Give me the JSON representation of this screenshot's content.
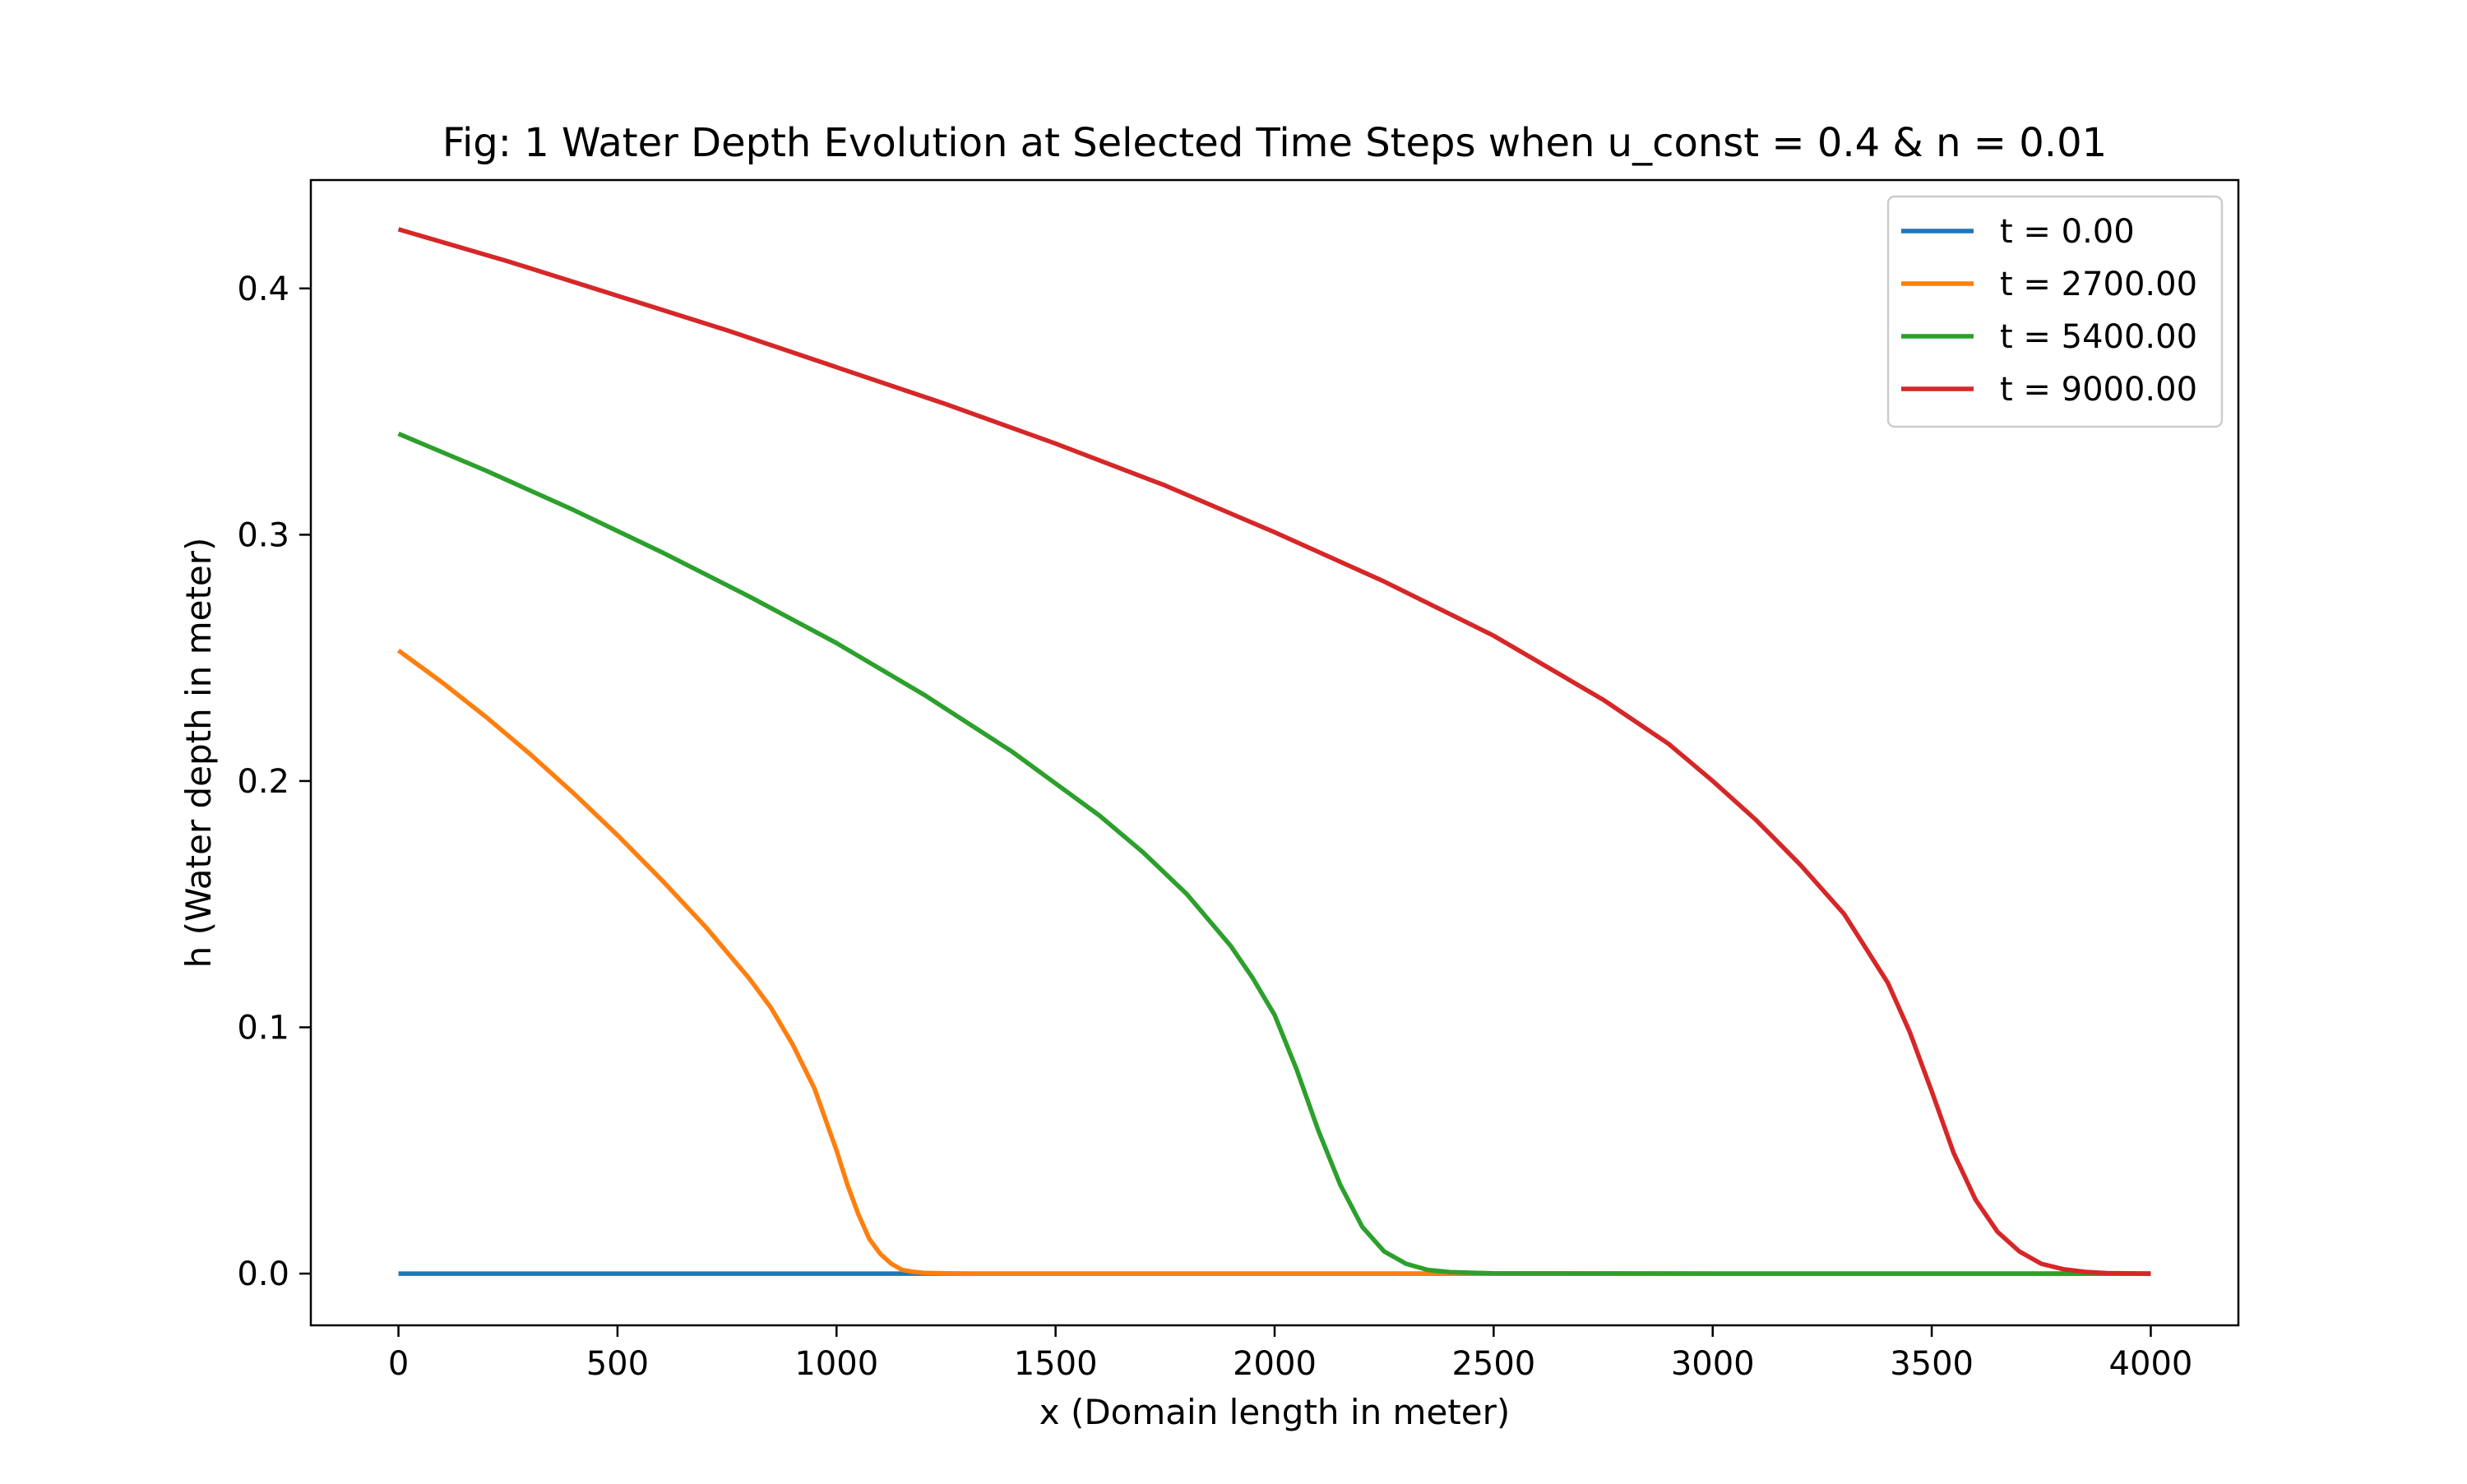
{
  "chart_data": {
    "type": "line",
    "title": "Fig: 1 Water Depth Evolution at Selected Time Steps when u_const = 0.4 & n = 0.01",
    "xlabel": "x (Domain length in meter)",
    "ylabel": "h (Water depth in meter)",
    "xlim": [
      -200,
      4200
    ],
    "ylim": [
      -0.021,
      0.444
    ],
    "xticks": [
      0,
      500,
      1000,
      1500,
      2000,
      2500,
      3000,
      3500,
      4000
    ],
    "xtick_labels": [
      "0",
      "500",
      "1000",
      "1500",
      "2000",
      "2500",
      "3000",
      "3500",
      "4000"
    ],
    "yticks": [
      0.0,
      0.1,
      0.2,
      0.3,
      0.4
    ],
    "ytick_labels": [
      "0.0",
      "0.1",
      "0.2",
      "0.3",
      "0.4"
    ],
    "grid": false,
    "legend_position": "top-right",
    "series": [
      {
        "name": "t = 0.00",
        "color": "#1f77b4",
        "x": [
          0,
          4000
        ],
        "y": [
          0.0,
          0.0
        ]
      },
      {
        "name": "t = 2700.00",
        "color": "#ff7f0e",
        "x": [
          0,
          100,
          200,
          300,
          400,
          500,
          600,
          700,
          800,
          850,
          900,
          950,
          1000,
          1025,
          1050,
          1075,
          1100,
          1125,
          1150,
          1175,
          1200,
          1250,
          1300,
          2300,
          3000,
          4000
        ],
        "y": [
          0.253,
          0.24,
          0.226,
          0.211,
          0.195,
          0.178,
          0.16,
          0.141,
          0.12,
          0.108,
          0.093,
          0.075,
          0.05,
          0.036,
          0.024,
          0.014,
          0.008,
          0.004,
          0.0015,
          0.0007,
          0.0003,
          0.0001,
          0.0,
          0.0,
          0.0,
          0.0
        ]
      },
      {
        "name": "t = 5400.00",
        "color": "#2ca02c",
        "x": [
          0,
          200,
          400,
          600,
          800,
          1000,
          1200,
          1400,
          1600,
          1700,
          1800,
          1900,
          1950,
          2000,
          2050,
          2100,
          2150,
          2200,
          2250,
          2300,
          2350,
          2400,
          2500,
          3000,
          3500,
          4000
        ],
        "y": [
          0.341,
          0.326,
          0.31,
          0.293,
          0.275,
          0.256,
          0.235,
          0.212,
          0.186,
          0.171,
          0.154,
          0.133,
          0.12,
          0.105,
          0.083,
          0.058,
          0.036,
          0.019,
          0.009,
          0.004,
          0.0015,
          0.0006,
          0.0001,
          0.0,
          0.0,
          0.0
        ]
      },
      {
        "name": "t = 9000.00",
        "color": "#d62728",
        "x": [
          0,
          250,
          500,
          750,
          1000,
          1250,
          1500,
          1750,
          2000,
          2250,
          2500,
          2750,
          2900,
          3000,
          3100,
          3200,
          3300,
          3400,
          3450,
          3500,
          3550,
          3600,
          3650,
          3700,
          3750,
          3800,
          3850,
          3900,
          4000
        ],
        "y": [
          0.424,
          0.411,
          0.397,
          0.383,
          0.368,
          0.353,
          0.337,
          0.32,
          0.301,
          0.281,
          0.259,
          0.233,
          0.215,
          0.2,
          0.184,
          0.166,
          0.146,
          0.118,
          0.098,
          0.074,
          0.049,
          0.03,
          0.017,
          0.009,
          0.004,
          0.0018,
          0.0007,
          0.0002,
          0.0
        ]
      }
    ]
  }
}
